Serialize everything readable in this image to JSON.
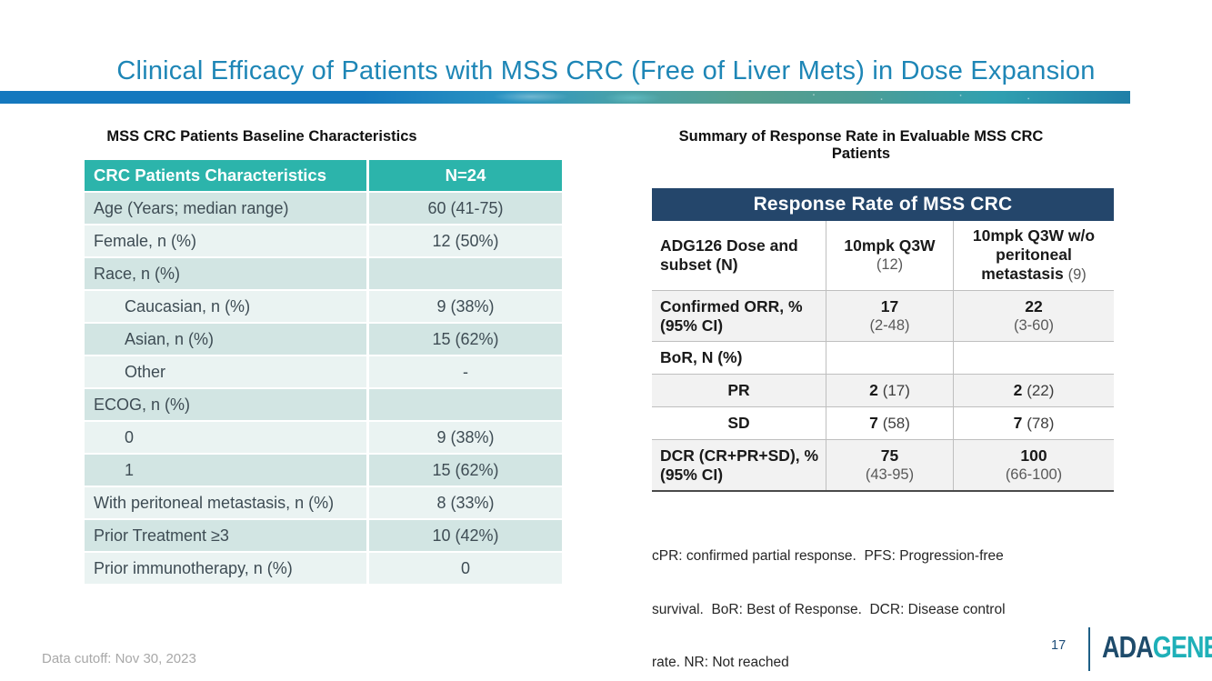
{
  "slide": {
    "title": "Clinical Efficacy of Patients with MSS CRC (Free of Liver Mets) in Dose Expansion",
    "colors": {
      "title_text": "#1E86B6",
      "teal_table_header": "#2CB4AB",
      "navy_table_header": "#24466B",
      "row_teal_dark": "#D2E5E3",
      "row_teal_light": "#EAF3F2",
      "row_gray_shaded": "#F2F2F2",
      "accent_bar_left": "#1478BE",
      "accent_bar_right": "#2E9FB0",
      "logo_navy": "#1E4B6B",
      "logo_teal": "#1FB0B8"
    },
    "footer": {
      "data_cutoff": "Data cutoff: Nov 30, 2023",
      "page_number": "17",
      "logo": {
        "prefix": "ADA",
        "suffix": "GENE"
      }
    }
  },
  "baseline_table": {
    "title": "MSS CRC Patients Baseline Characteristics",
    "header": {
      "col1": "CRC Patients Characteristics",
      "col2": "N=24"
    },
    "rows": [
      {
        "label": "Age (Years; median range)",
        "value": "60 (41-75)",
        "indent": false
      },
      {
        "label": "Female, n (%)",
        "value": "12 (50%)",
        "indent": false
      },
      {
        "label": "Race, n (%)",
        "value": "",
        "indent": false
      },
      {
        "label": "Caucasian, n (%)",
        "value": "9 (38%)",
        "indent": true
      },
      {
        "label": "Asian, n (%)",
        "value": "15 (62%)",
        "indent": true
      },
      {
        "label": "Other",
        "value": "-",
        "indent": true
      },
      {
        "label": "ECOG, n (%)",
        "value": "",
        "indent": false
      },
      {
        "label": "0",
        "value": "9 (38%)",
        "indent": true
      },
      {
        "label": "1",
        "value": "15 (62%)",
        "indent": true
      },
      {
        "label": "With peritoneal metastasis, n (%)",
        "value": "8 (33%)",
        "indent": false
      },
      {
        "label": "Prior Treatment ≥3",
        "value": "10 (42%)",
        "indent": false
      },
      {
        "label": "Prior immunotherapy, n (%)",
        "value": "0",
        "indent": false
      }
    ]
  },
  "response_table": {
    "title": "Summary of Response Rate in Evaluable MSS CRC Patients",
    "banner": "Response Rate of MSS CRC",
    "column_headers": {
      "col1_lines": [
        "ADG126 Dose and",
        "subset (N)"
      ],
      "col2": {
        "main": "10mpk Q3W",
        "sub": "(12)"
      },
      "col3": {
        "main": "10mpk Q3W w/o peritoneal metastasis",
        "sub": "(9)"
      }
    },
    "rows": [
      {
        "label_lines": [
          "Confirmed ORR, %",
          "(95% CI)"
        ],
        "label_center": false,
        "shaded": true,
        "tall": true,
        "values": [
          {
            "main": "17",
            "sub": "(2-48)",
            "inline": false
          },
          {
            "main": "22",
            "sub": "(3-60)",
            "inline": false
          }
        ]
      },
      {
        "label_lines": [
          "BoR, N (%)"
        ],
        "label_center": false,
        "shaded": false,
        "tall": false,
        "values": [
          {
            "main": "",
            "sub": "",
            "inline": false
          },
          {
            "main": "",
            "sub": "",
            "inline": false
          }
        ]
      },
      {
        "label_lines": [
          "PR"
        ],
        "label_center": true,
        "shaded": true,
        "tall": false,
        "values": [
          {
            "main": "2",
            "sub": "(17)",
            "inline": true
          },
          {
            "main": "2",
            "sub": "(22)",
            "inline": true
          }
        ]
      },
      {
        "label_lines": [
          "SD"
        ],
        "label_center": true,
        "shaded": false,
        "tall": false,
        "values": [
          {
            "main": "7",
            "sub": "(58)",
            "inline": true
          },
          {
            "main": "7",
            "sub": "(78)",
            "inline": true
          }
        ]
      },
      {
        "label_lines": [
          "DCR (CR+PR+SD), %",
          "(95% CI)"
        ],
        "label_center": false,
        "shaded": true,
        "tall": true,
        "values": [
          {
            "main": "75",
            "sub": "(43-95)",
            "inline": false
          },
          {
            "main": "100",
            "sub": "(66-100)",
            "inline": false
          }
        ]
      }
    ],
    "footnote_lines": [
      "cPR: confirmed partial response.  PFS: Progression-free",
      "survival.  BoR: Best of Response.  DCR: Disease control",
      "rate. NR: Not reached"
    ]
  }
}
